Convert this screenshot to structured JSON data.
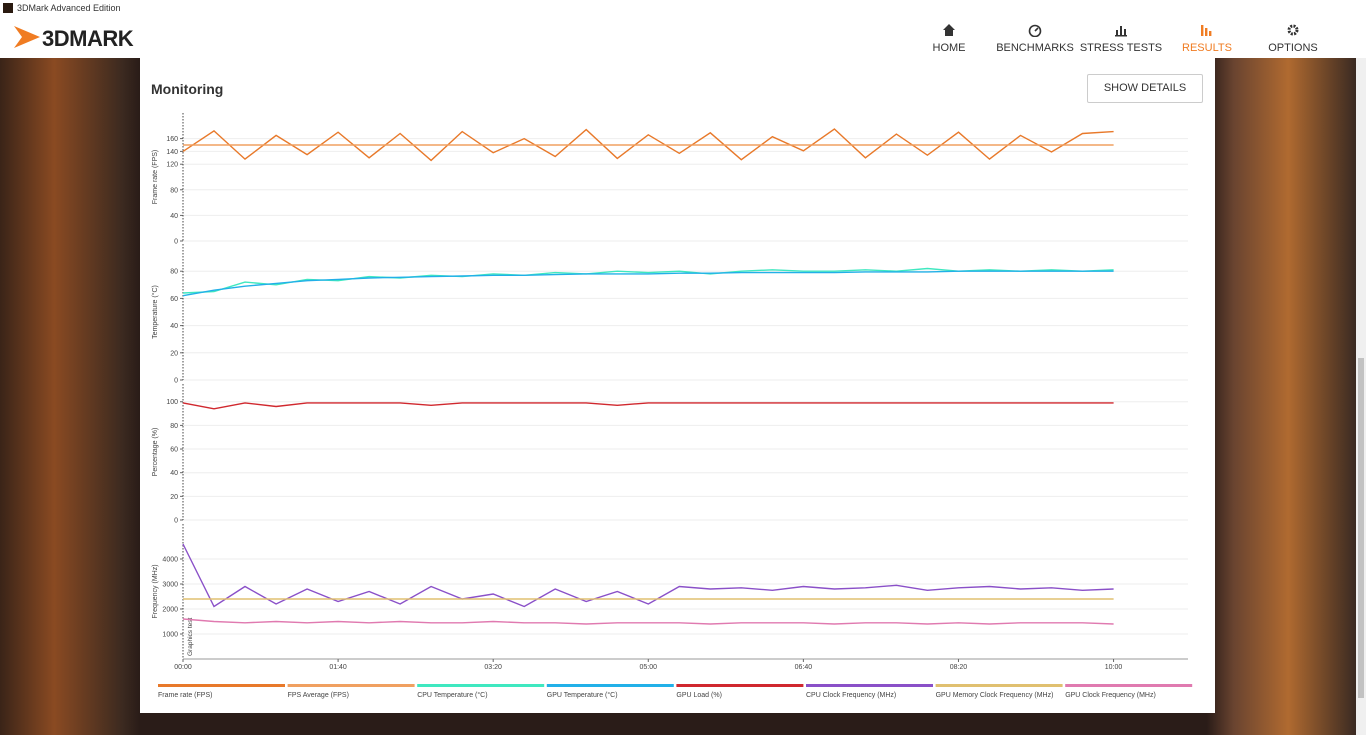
{
  "window": {
    "title": "3DMark Advanced Edition"
  },
  "header": {
    "logo": "3DMARK",
    "nav": [
      {
        "label": "HOME"
      },
      {
        "label": "BENCHMARKS"
      },
      {
        "label": "STRESS TESTS"
      },
      {
        "label": "RESULTS",
        "active": true
      },
      {
        "label": "OPTIONS"
      }
    ]
  },
  "panel": {
    "title": "Monitoring",
    "button": "SHOW DETAILS"
  },
  "chart_data": [
    {
      "type": "line",
      "y_label": "Frame rate (FPS)",
      "xlim": [
        0,
        648
      ],
      "ylim": [
        0,
        200
      ],
      "yticks": [
        0,
        40,
        80,
        120,
        140,
        160
      ],
      "grid": true,
      "x": [
        0,
        20,
        40,
        60,
        80,
        100,
        120,
        140,
        160,
        180,
        200,
        220,
        240,
        260,
        280,
        300,
        320,
        340,
        360,
        380,
        400,
        420,
        440,
        460,
        480,
        500,
        520,
        540,
        560,
        580,
        600
      ],
      "series": [
        {
          "name": "Frame rate (FPS)",
          "color": "#e8792a",
          "values": [
            140,
            172,
            128,
            165,
            135,
            170,
            130,
            168,
            126,
            171,
            138,
            160,
            132,
            174,
            129,
            166,
            137,
            169,
            127,
            163,
            141,
            175,
            130,
            167,
            134,
            170,
            128,
            165,
            139,
            168,
            171
          ]
        },
        {
          "name": "FPS Average (FPS)",
          "color": "#f0a060",
          "values": [
            150,
            150,
            150,
            150,
            150,
            150,
            150,
            150,
            150,
            150,
            150,
            150,
            150,
            150,
            150,
            150,
            150,
            150,
            150,
            150,
            150,
            150,
            150,
            150,
            150,
            150,
            150,
            150,
            150,
            150,
            150
          ]
        }
      ]
    },
    {
      "type": "line",
      "y_label": "Temperature (°C)",
      "xlim": [
        0,
        648
      ],
      "ylim": [
        0,
        100
      ],
      "yticks": [
        0,
        20,
        40,
        60,
        80
      ],
      "grid": true,
      "x": [
        0,
        20,
        40,
        60,
        80,
        100,
        120,
        140,
        160,
        180,
        200,
        220,
        240,
        260,
        280,
        300,
        320,
        340,
        360,
        380,
        400,
        420,
        440,
        460,
        480,
        500,
        520,
        540,
        560,
        580,
        600
      ],
      "series": [
        {
          "name": "CPU Temperature (°C)",
          "color": "#3fe8c0",
          "values": [
            64,
            65,
            72,
            70,
            74,
            73,
            76,
            75,
            77,
            76,
            78,
            77,
            79,
            78,
            80,
            79,
            80,
            78,
            80,
            81,
            80,
            80,
            81,
            80,
            82,
            80,
            81,
            80,
            81,
            80,
            81
          ]
        },
        {
          "name": "GPU Temperature (°C)",
          "color": "#22b0e8",
          "values": [
            62,
            66,
            69,
            71,
            73,
            74,
            75,
            75.5,
            76,
            76.5,
            77,
            77,
            77.5,
            78,
            78,
            78,
            78.5,
            78.5,
            79,
            79,
            79,
            79,
            79.5,
            79.5,
            79.5,
            80,
            80,
            80,
            80,
            80,
            80
          ]
        }
      ]
    },
    {
      "type": "line",
      "y_label": "Percentage (%)",
      "xlim": [
        0,
        648
      ],
      "ylim": [
        0,
        115
      ],
      "yticks": [
        0,
        20,
        40,
        60,
        80,
        100
      ],
      "grid": true,
      "x": [
        0,
        20,
        40,
        60,
        80,
        100,
        120,
        140,
        160,
        180,
        200,
        220,
        240,
        260,
        280,
        300,
        320,
        340,
        360,
        380,
        400,
        420,
        440,
        460,
        480,
        500,
        520,
        540,
        560,
        580,
        600
      ],
      "series": [
        {
          "name": "GPU Load (%)",
          "color": "#d0282e",
          "values": [
            99,
            94,
            99,
            96,
            99,
            99,
            99,
            99,
            97,
            99,
            99,
            99,
            99,
            99,
            97,
            99,
            99,
            99,
            99,
            99,
            99,
            99,
            99,
            99,
            99,
            99,
            99,
            99,
            99,
            99,
            99
          ]
        }
      ]
    },
    {
      "type": "line",
      "y_label": "Frequency (MHz)",
      "annotation": "Graphics test",
      "xlim": [
        0,
        648
      ],
      "ylim": [
        0,
        5400
      ],
      "yticks": [
        1000,
        2000,
        3000,
        4000
      ],
      "grid": true,
      "xticks": [
        {
          "value": 0,
          "label": "00:00"
        },
        {
          "value": 100,
          "label": "01:40"
        },
        {
          "value": 200,
          "label": "03:20"
        },
        {
          "value": 300,
          "label": "05:00"
        },
        {
          "value": 400,
          "label": "06:40"
        },
        {
          "value": 500,
          "label": "08:20"
        },
        {
          "value": 600,
          "label": "10:00"
        }
      ],
      "x": [
        0,
        20,
        40,
        60,
        80,
        100,
        120,
        140,
        160,
        180,
        200,
        220,
        240,
        260,
        280,
        300,
        320,
        340,
        360,
        380,
        400,
        420,
        440,
        460,
        480,
        500,
        520,
        540,
        560,
        580,
        600
      ],
      "series": [
        {
          "name": "CPU Clock Frequency (MHz)",
          "color": "#8a50c8",
          "values": [
            4600,
            2100,
            2900,
            2200,
            2800,
            2300,
            2700,
            2200,
            2900,
            2400,
            2600,
            2100,
            2800,
            2300,
            2700,
            2200,
            2900,
            2800,
            2850,
            2750,
            2900,
            2800,
            2850,
            2950,
            2750,
            2850,
            2900,
            2800,
            2850,
            2750,
            2800
          ]
        },
        {
          "name": "GPU Memory Clock Frequency (MHz)",
          "color": "#e0c070",
          "values": [
            2400,
            2400,
            2400,
            2400,
            2400,
            2400,
            2400,
            2400,
            2400,
            2400,
            2400,
            2400,
            2400,
            2400,
            2400,
            2400,
            2400,
            2400,
            2400,
            2400,
            2400,
            2400,
            2400,
            2400,
            2400,
            2400,
            2400,
            2400,
            2400,
            2400,
            2400
          ]
        },
        {
          "name": "GPU Clock Frequency (MHz)",
          "color": "#e07ab0",
          "values": [
            1600,
            1500,
            1450,
            1500,
            1450,
            1500,
            1450,
            1500,
            1450,
            1450,
            1500,
            1450,
            1450,
            1400,
            1450,
            1450,
            1450,
            1400,
            1450,
            1450,
            1450,
            1400,
            1450,
            1450,
            1400,
            1450,
            1400,
            1450,
            1450,
            1450,
            1400
          ]
        }
      ]
    }
  ]
}
